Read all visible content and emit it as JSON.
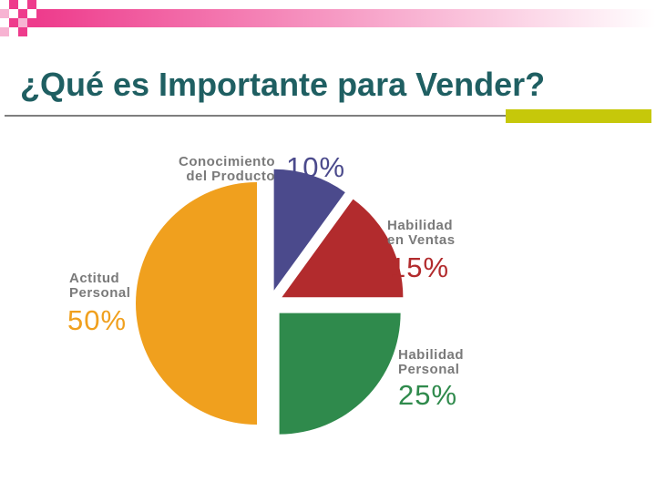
{
  "chart_data": {
    "type": "pie",
    "title": "¿Qué es Importante para Vender?",
    "categories": [
      "Conocimiento\ndel Producto",
      "Habilidad\nen Ventas",
      "Habilidad\nPersonal",
      "Actitud\nPersonal"
    ],
    "values": [
      10,
      15,
      25,
      50
    ],
    "value_labels": [
      "10%",
      "15%",
      "25%",
      "50%"
    ],
    "colors": [
      "#4b4a8c",
      "#b22b2d",
      "#2f8a4c",
      "#f0a01e"
    ]
  }
}
